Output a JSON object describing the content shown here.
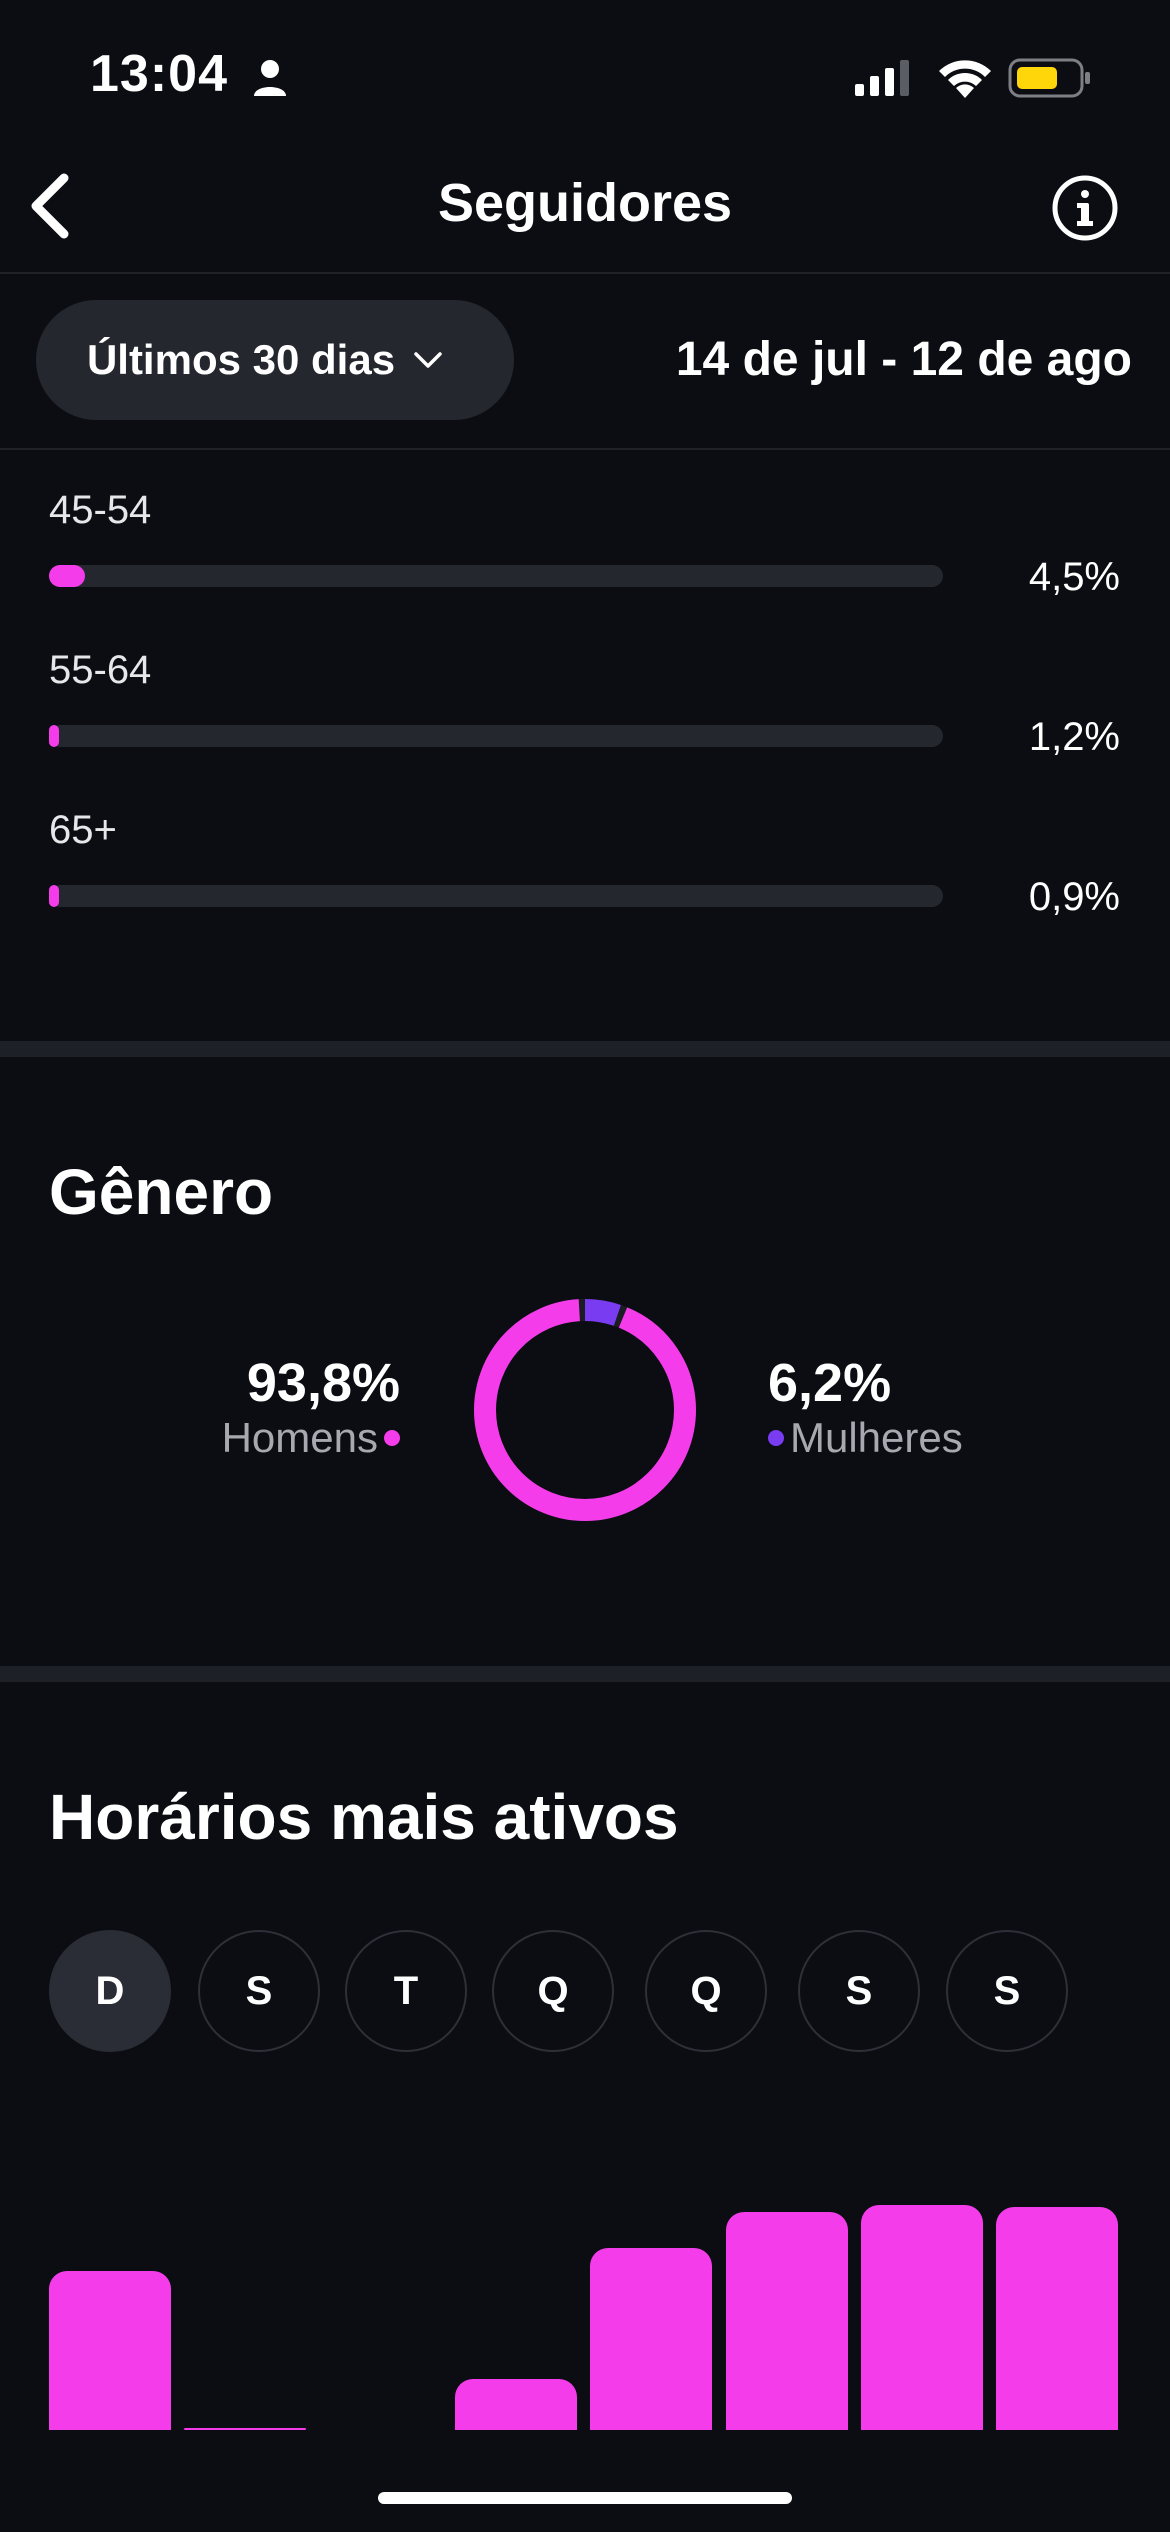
{
  "status_bar": {
    "time": "13:04"
  },
  "header": {
    "title": "Seguidores"
  },
  "filter": {
    "range_label": "Últimos 30 dias",
    "date_range": "14 de jul - 12 de ago"
  },
  "age_groups": [
    {
      "label": "45-54",
      "percent_text": "4,5%",
      "value": 4.5
    },
    {
      "label": "55-64",
      "percent_text": "1,2%",
      "value": 1.2
    },
    {
      "label": "65+",
      "percent_text": "0,9%",
      "value": 0.9
    }
  ],
  "gender": {
    "title": "Gênero",
    "men": {
      "percent_text": "93,8%",
      "label": "Homens",
      "value": 93.8,
      "color": "#f53ceb"
    },
    "women": {
      "percent_text": "6,2%",
      "label": "Mulheres",
      "value": 6.2,
      "color": "#7a3cf0"
    }
  },
  "active_hours": {
    "title": "Horários mais ativos",
    "days": [
      "D",
      "S",
      "T",
      "Q",
      "Q",
      "S",
      "S"
    ],
    "selected_day_index": 0
  },
  "chart_data": {
    "type": "bar",
    "values": [
      0.69,
      0.01,
      0.0,
      0.22,
      0.79,
      0.95,
      0.98,
      0.97
    ],
    "color": "#f53ceb"
  }
}
